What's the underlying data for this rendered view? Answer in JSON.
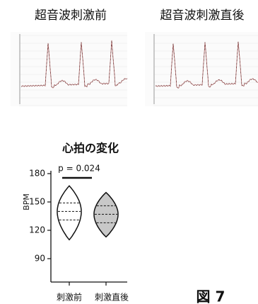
{
  "labels": {
    "left": "超音波刺激前",
    "right": "超音波刺激直後"
  },
  "chart_data": {
    "type": "violin",
    "title": "心拍の変化",
    "y_label": "BPM",
    "categories": [
      "刺激前",
      "刺激直後"
    ],
    "colors": [
      "#ffffff",
      "#c8c8c8"
    ],
    "min": [
      110,
      113
    ],
    "q1": [
      131,
      128
    ],
    "median": [
      140,
      137
    ],
    "q3": [
      149,
      146
    ],
    "max": [
      167,
      160
    ],
    "annotation": "p = 0.024",
    "ylim": [
      60,
      180
    ],
    "yticks": [
      90,
      120,
      150,
      180
    ]
  },
  "figure_label": "図 7"
}
